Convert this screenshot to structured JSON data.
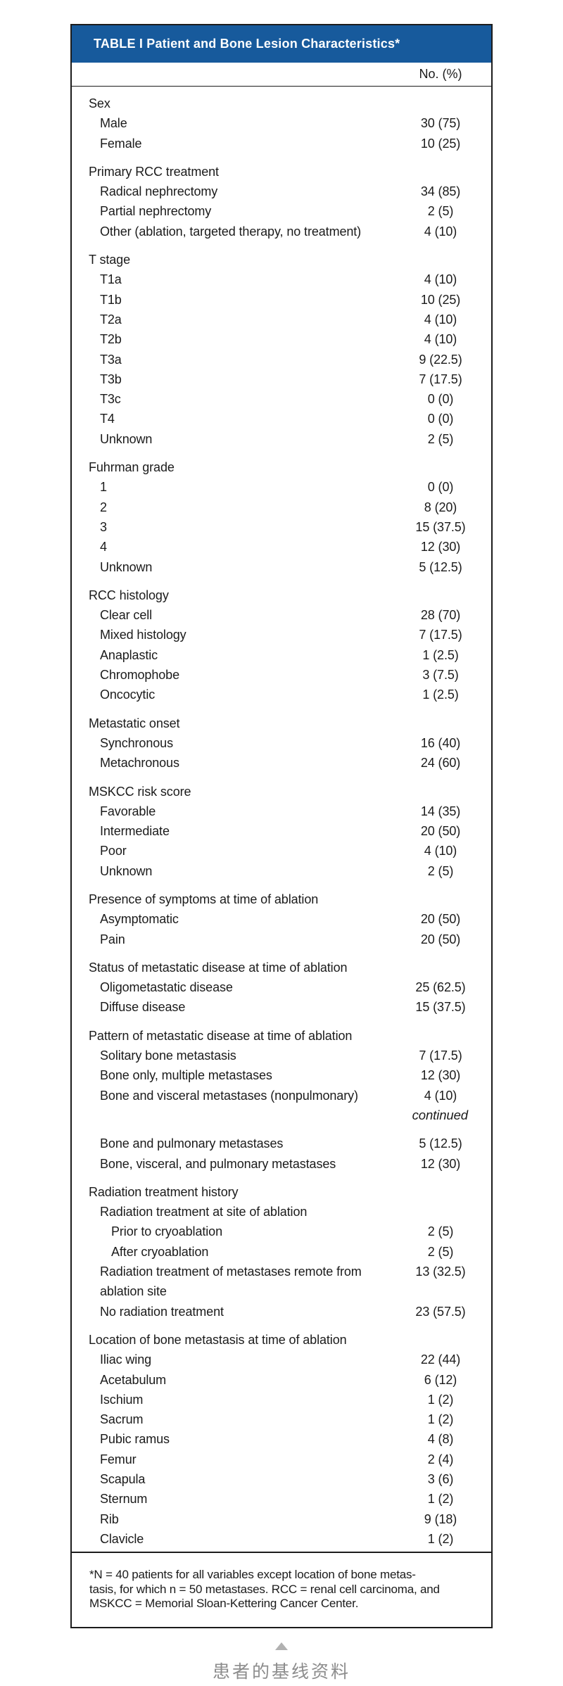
{
  "table": {
    "title": "TABLE I Patient and Bone Lesion Characteristics*",
    "column_header": "No. (%)",
    "sections": [
      {
        "label": "Sex",
        "rows": [
          {
            "label": "Male",
            "value": "30 (75)",
            "indent": 1
          },
          {
            "label": "Female",
            "value": "10 (25)",
            "indent": 1
          }
        ]
      },
      {
        "label": "Primary RCC treatment",
        "rows": [
          {
            "label": "Radical nephrectomy",
            "value": "34 (85)",
            "indent": 1
          },
          {
            "label": "Partial nephrectomy",
            "value": "2 (5)",
            "indent": 1
          },
          {
            "label": "Other (ablation, targeted therapy, no treatment)",
            "value": "4 (10)",
            "indent": 1
          }
        ]
      },
      {
        "label": "T stage",
        "rows": [
          {
            "label": "T1a",
            "value": "4 (10)",
            "indent": 1
          },
          {
            "label": "T1b",
            "value": "10 (25)",
            "indent": 1
          },
          {
            "label": "T2a",
            "value": "4 (10)",
            "indent": 1
          },
          {
            "label": "T2b",
            "value": "4 (10)",
            "indent": 1
          },
          {
            "label": "T3a",
            "value": "9 (22.5)",
            "indent": 1
          },
          {
            "label": "T3b",
            "value": "7 (17.5)",
            "indent": 1
          },
          {
            "label": "T3c",
            "value": "0 (0)",
            "indent": 1
          },
          {
            "label": "T4",
            "value": "0 (0)",
            "indent": 1
          },
          {
            "label": "Unknown",
            "value": "2 (5)",
            "indent": 1
          }
        ]
      },
      {
        "label": "Fuhrman grade",
        "rows": [
          {
            "label": "1",
            "value": "0 (0)",
            "indent": 1
          },
          {
            "label": "2",
            "value": "8 (20)",
            "indent": 1
          },
          {
            "label": "3",
            "value": "15 (37.5)",
            "indent": 1
          },
          {
            "label": "4",
            "value": "12 (30)",
            "indent": 1
          },
          {
            "label": "Unknown",
            "value": "5 (12.5)",
            "indent": 1
          }
        ]
      },
      {
        "label": "RCC histology",
        "rows": [
          {
            "label": "Clear cell",
            "value": "28 (70)",
            "indent": 1
          },
          {
            "label": "Mixed histology",
            "value": "7 (17.5)",
            "indent": 1
          },
          {
            "label": "Anaplastic",
            "value": "1 (2.5)",
            "indent": 1
          },
          {
            "label": "Chromophobe",
            "value": "3 (7.5)",
            "indent": 1
          },
          {
            "label": "Oncocytic",
            "value": "1 (2.5)",
            "indent": 1
          }
        ]
      },
      {
        "label": "Metastatic onset",
        "rows": [
          {
            "label": "Synchronous",
            "value": "16 (40)",
            "indent": 1
          },
          {
            "label": "Metachronous",
            "value": "24 (60)",
            "indent": 1
          }
        ]
      },
      {
        "label": "MSKCC risk score",
        "rows": [
          {
            "label": "Favorable",
            "value": "14 (35)",
            "indent": 1
          },
          {
            "label": "Intermediate",
            "value": "20 (50)",
            "indent": 1
          },
          {
            "label": "Poor",
            "value": "4 (10)",
            "indent": 1
          },
          {
            "label": "Unknown",
            "value": "2 (5)",
            "indent": 1
          }
        ]
      },
      {
        "label": "Presence of symptoms at time of ablation",
        "rows": [
          {
            "label": "Asymptomatic",
            "value": "20 (50)",
            "indent": 1
          },
          {
            "label": "Pain",
            "value": "20 (50)",
            "indent": 1
          }
        ]
      },
      {
        "label": "Status of metastatic disease at time of ablation",
        "rows": [
          {
            "label": "Oligometastatic disease",
            "value": "25 (62.5)",
            "indent": 1
          },
          {
            "label": "Diffuse disease",
            "value": "15 (37.5)",
            "indent": 1
          }
        ]
      },
      {
        "label": "Pattern of metastatic disease at time of ablation",
        "rows": [
          {
            "label": "Solitary bone metastasis",
            "value": "7 (17.5)",
            "indent": 1
          },
          {
            "label": "Bone only, multiple metastases",
            "value": "12 (30)",
            "indent": 1
          },
          {
            "label": "Bone and visceral metastases (nonpulmonary)",
            "value": "4 (10)",
            "indent": 1
          },
          {
            "label": "continued",
            "type": "continued"
          },
          {
            "label": "Bone and pulmonary metastases",
            "value": "5 (12.5)",
            "indent": 1,
            "gap_above": true
          },
          {
            "label": "Bone, visceral, and pulmonary metastases",
            "value": "12 (30)",
            "indent": 1
          }
        ]
      },
      {
        "label": "Radiation treatment history",
        "rows": [
          {
            "label": "Radiation treatment at site of ablation",
            "value": "",
            "indent": 1
          },
          {
            "label": "Prior to cryoablation",
            "value": "2 (5)",
            "indent": 2
          },
          {
            "label": "After cryoablation",
            "value": "2 (5)",
            "indent": 2
          },
          {
            "label": "Radiation treatment of metastases remote from ablation site",
            "value": "13 (32.5)",
            "indent": 1
          },
          {
            "label": "No radiation treatment",
            "value": "23 (57.5)",
            "indent": 1
          }
        ]
      },
      {
        "label": "Location of bone metastasis at time of ablation",
        "rows": [
          {
            "label": "Iliac wing",
            "value": "22 (44)",
            "indent": 1
          },
          {
            "label": "Acetabulum",
            "value": "6 (12)",
            "indent": 1
          },
          {
            "label": "Ischium",
            "value": "1 (2)",
            "indent": 1
          },
          {
            "label": "Sacrum",
            "value": "1 (2)",
            "indent": 1
          },
          {
            "label": "Pubic ramus",
            "value": "4 (8)",
            "indent": 1
          },
          {
            "label": "Femur",
            "value": "2 (4)",
            "indent": 1
          },
          {
            "label": "Scapula",
            "value": "3 (6)",
            "indent": 1
          },
          {
            "label": "Sternum",
            "value": "1 (2)",
            "indent": 1
          },
          {
            "label": "Rib",
            "value": "9 (18)",
            "indent": 1
          },
          {
            "label": "Clavicle",
            "value": "1 (2)",
            "indent": 1
          }
        ]
      }
    ],
    "footnote_lines": [
      "*N = 40 patients for all variables except location of bone metas-",
      "tasis, for which n = 50 metastases. RCC = renal cell carcinoma, and",
      "MSKCC = Memorial Sloan-Kettering Cancer Center."
    ]
  },
  "caption": {
    "text": "患者的基线资料"
  },
  "colors": {
    "header_blue": "#175a9c",
    "border_black": "#1c1c1c",
    "caption_gray": "#8d8d8d",
    "arrow_gray": "#b1b1b1"
  }
}
